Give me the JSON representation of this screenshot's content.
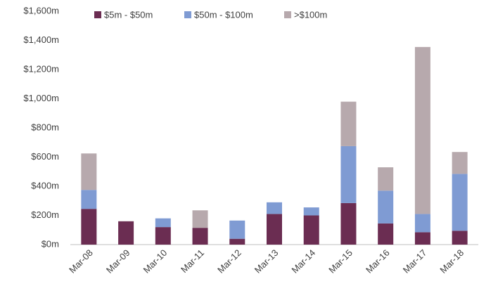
{
  "chart_data": {
    "type": "stacked_bar",
    "categories": [
      "Mar-08",
      "Mar-09",
      "Mar-10",
      "Mar-11",
      "Mar-12",
      "Mar-13",
      "Mar-14",
      "Mar-15",
      "Mar-16",
      "Mar-17",
      "Mar-18"
    ],
    "series": [
      {
        "name": "$5m - $50m",
        "color": "#6b2d52",
        "values": [
          245,
          160,
          120,
          115,
          40,
          210,
          200,
          285,
          145,
          85,
          95
        ]
      },
      {
        "name": "$50m - $100m",
        "color": "#7f9bd3",
        "values": [
          130,
          0,
          60,
          0,
          125,
          80,
          55,
          390,
          225,
          125,
          390
        ]
      },
      {
        "name": ">$100m",
        "color": "#b7a9ad",
        "values": [
          250,
          0,
          0,
          120,
          0,
          0,
          0,
          305,
          160,
          1145,
          150
        ]
      }
    ],
    "ylim": [
      0,
      1600
    ],
    "yticks": [
      {
        "value": 0,
        "label": "$0m"
      },
      {
        "value": 200,
        "label": "$200m"
      },
      {
        "value": 400,
        "label": "$400m"
      },
      {
        "value": 600,
        "label": "$600m"
      },
      {
        "value": 800,
        "label": "$800m"
      },
      {
        "value": 1000,
        "label": "$1,000m"
      },
      {
        "value": 1200,
        "label": "$1,200m"
      },
      {
        "value": 1400,
        "label": "$1,400m"
      },
      {
        "value": 1600,
        "label": "$1,600m"
      }
    ],
    "legend": "top"
  }
}
